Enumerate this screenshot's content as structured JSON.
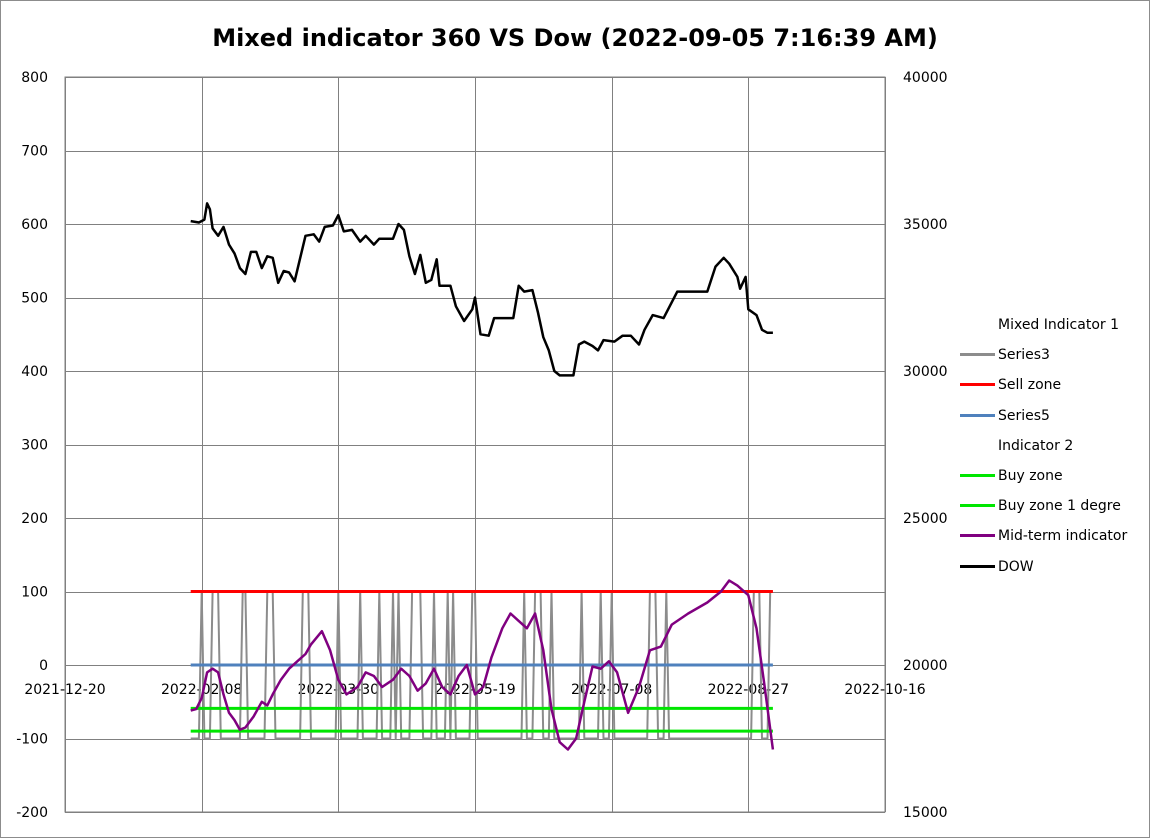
{
  "chart_data": {
    "type": "line",
    "title": "Mixed indicator 360 VS Dow (2022-09-05 7:16:39 AM)",
    "xlabel": "",
    "ylabel": "",
    "x_tick_labels": [
      "2021-12-20",
      "2022-02-08",
      "2022-03-30",
      "2022-05-19",
      "2022-07-08",
      "2022-08-27",
      "2022-10-16"
    ],
    "x_range": [
      "2021-12-20",
      "2022-10-16"
    ],
    "y_left": {
      "ticks": [
        800,
        700,
        600,
        500,
        400,
        300,
        200,
        100,
        0,
        -100,
        -200
      ],
      "range": [
        -200,
        800
      ]
    },
    "y_right": {
      "ticks": [
        40000,
        35000,
        30000,
        25000,
        20000,
        15000
      ],
      "range": [
        15000,
        40000
      ]
    },
    "grid": true,
    "legend_position": "right",
    "legend": [
      {
        "label": "Mixed Indicator 1",
        "color": ""
      },
      {
        "label": "Series3",
        "color": "#8c8c8c"
      },
      {
        "label": "Sell zone",
        "color": "#ff0000"
      },
      {
        "label": "Series5",
        "color": "#4f81bd"
      },
      {
        "label": "Indicator  2",
        "color": ""
      },
      {
        "label": "Buy zone",
        "color": "#00e600"
      },
      {
        "label": "Buy zone 1 degre",
        "color": "#00e600"
      },
      {
        "label": "Mid-term indicator",
        "color": "#800080"
      },
      {
        "label": "DOW",
        "color": "#000000"
      }
    ],
    "series": [
      {
        "name": "Series3",
        "axis": "left",
        "color": "#8c8c8c",
        "points": [
          [
            "2022-02-04",
            -100
          ],
          [
            "2022-02-07",
            -100
          ],
          [
            "2022-02-08",
            100
          ],
          [
            "2022-02-09",
            -100
          ],
          [
            "2022-02-11",
            -100
          ],
          [
            "2022-02-12",
            100
          ],
          [
            "2022-02-14",
            100
          ],
          [
            "2022-02-15",
            -100
          ],
          [
            "2022-02-22",
            -100
          ],
          [
            "2022-02-23",
            100
          ],
          [
            "2022-02-24",
            100
          ],
          [
            "2022-02-25",
            -100
          ],
          [
            "2022-03-03",
            -100
          ],
          [
            "2022-03-04",
            100
          ],
          [
            "2022-03-06",
            100
          ],
          [
            "2022-03-07",
            -100
          ],
          [
            "2022-03-16",
            -100
          ],
          [
            "2022-03-17",
            100
          ],
          [
            "2022-03-19",
            100
          ],
          [
            "2022-03-20",
            -100
          ],
          [
            "2022-03-29",
            -100
          ],
          [
            "2022-03-30",
            100
          ],
          [
            "2022-03-31",
            -100
          ],
          [
            "2022-04-06",
            -100
          ],
          [
            "2022-04-07",
            100
          ],
          [
            "2022-04-08",
            -100
          ],
          [
            "2022-04-13",
            -100
          ],
          [
            "2022-04-14",
            100
          ],
          [
            "2022-04-15",
            -100
          ],
          [
            "2022-04-18",
            -100
          ],
          [
            "2022-04-19",
            100
          ],
          [
            "2022-04-20",
            -100
          ],
          [
            "2022-04-21",
            100
          ],
          [
            "2022-04-22",
            -100
          ],
          [
            "2022-04-25",
            -100
          ],
          [
            "2022-04-26",
            100
          ],
          [
            "2022-04-29",
            100
          ],
          [
            "2022-04-30",
            -100
          ],
          [
            "2022-05-03",
            -100
          ],
          [
            "2022-05-04",
            100
          ],
          [
            "2022-05-05",
            -100
          ],
          [
            "2022-05-08",
            -100
          ],
          [
            "2022-05-09",
            100
          ],
          [
            "2022-05-10",
            -100
          ],
          [
            "2022-05-11",
            100
          ],
          [
            "2022-05-12",
            -100
          ],
          [
            "2022-05-17",
            -100
          ],
          [
            "2022-05-18",
            100
          ],
          [
            "2022-05-19",
            100
          ],
          [
            "2022-05-20",
            -100
          ],
          [
            "2022-06-05",
            -100
          ],
          [
            "2022-06-06",
            100
          ],
          [
            "2022-06-07",
            -100
          ],
          [
            "2022-06-09",
            -100
          ],
          [
            "2022-06-10",
            100
          ],
          [
            "2022-06-12",
            100
          ],
          [
            "2022-06-13",
            -100
          ],
          [
            "2022-06-15",
            -100
          ],
          [
            "2022-06-16",
            100
          ],
          [
            "2022-06-17",
            -100
          ],
          [
            "2022-06-26",
            -100
          ],
          [
            "2022-06-27",
            100
          ],
          [
            "2022-06-28",
            -100
          ],
          [
            "2022-07-03",
            -100
          ],
          [
            "2022-07-04",
            100
          ],
          [
            "2022-07-05",
            -100
          ],
          [
            "2022-07-07",
            -100
          ],
          [
            "2022-07-08",
            100
          ],
          [
            "2022-07-09",
            -100
          ],
          [
            "2022-07-21",
            -100
          ],
          [
            "2022-07-22",
            100
          ],
          [
            "2022-07-24",
            100
          ],
          [
            "2022-07-25",
            -100
          ],
          [
            "2022-07-27",
            -100
          ],
          [
            "2022-07-28",
            100
          ],
          [
            "2022-07-29",
            -100
          ],
          [
            "2022-08-28",
            -100
          ],
          [
            "2022-08-29",
            100
          ],
          [
            "2022-08-31",
            100
          ],
          [
            "2022-09-01",
            -100
          ],
          [
            "2022-09-03",
            -100
          ],
          [
            "2022-09-04",
            100
          ],
          [
            "2022-09-05",
            100
          ]
        ]
      },
      {
        "name": "Sell zone",
        "axis": "left",
        "color": "#ff0000",
        "points": [
          [
            "2022-02-04",
            100
          ],
          [
            "2022-09-05",
            100
          ]
        ]
      },
      {
        "name": "Series5",
        "axis": "left",
        "color": "#4f81bd",
        "points": [
          [
            "2022-02-04",
            0
          ],
          [
            "2022-09-05",
            0
          ]
        ]
      },
      {
        "name": "Buy zone",
        "axis": "left",
        "color": "#00e600",
        "points": [
          [
            "2022-02-04",
            -59
          ],
          [
            "2022-09-05",
            -59
          ]
        ]
      },
      {
        "name": "Buy zone 1 degre",
        "axis": "left",
        "color": "#00e600",
        "points": [
          [
            "2022-02-04",
            -90
          ],
          [
            "2022-09-05",
            -90
          ]
        ]
      },
      {
        "name": "Mid-term indicator",
        "axis": "left",
        "color": "#800080",
        "points": [
          [
            "2022-02-04",
            -62
          ],
          [
            "2022-02-06",
            -60
          ],
          [
            "2022-02-08",
            -45
          ],
          [
            "2022-02-10",
            -10
          ],
          [
            "2022-02-12",
            -5
          ],
          [
            "2022-02-14",
            -10
          ],
          [
            "2022-02-16",
            -40
          ],
          [
            "2022-02-18",
            -65
          ],
          [
            "2022-02-20",
            -75
          ],
          [
            "2022-02-22",
            -88
          ],
          [
            "2022-02-24",
            -85
          ],
          [
            "2022-02-27",
            -70
          ],
          [
            "2022-03-02",
            -50
          ],
          [
            "2022-03-04",
            -55
          ],
          [
            "2022-03-06",
            -40
          ],
          [
            "2022-03-09",
            -20
          ],
          [
            "2022-03-12",
            -5
          ],
          [
            "2022-03-15",
            5
          ],
          [
            "2022-03-18",
            15
          ],
          [
            "2022-03-20",
            28
          ],
          [
            "2022-03-24",
            46
          ],
          [
            "2022-03-27",
            20
          ],
          [
            "2022-03-30",
            -20
          ],
          [
            "2022-04-02",
            -40
          ],
          [
            "2022-04-06",
            -30
          ],
          [
            "2022-04-09",
            -10
          ],
          [
            "2022-04-12",
            -15
          ],
          [
            "2022-04-15",
            -30
          ],
          [
            "2022-04-19",
            -20
          ],
          [
            "2022-04-22",
            -5
          ],
          [
            "2022-04-25",
            -15
          ],
          [
            "2022-04-28",
            -35
          ],
          [
            "2022-05-01",
            -25
          ],
          [
            "2022-05-04",
            -5
          ],
          [
            "2022-05-07",
            -30
          ],
          [
            "2022-05-10",
            -40
          ],
          [
            "2022-05-13",
            -15
          ],
          [
            "2022-05-16",
            0
          ],
          [
            "2022-05-19",
            -40
          ],
          [
            "2022-05-22",
            -30
          ],
          [
            "2022-05-25",
            10
          ],
          [
            "2022-05-29",
            50
          ],
          [
            "2022-06-01",
            70
          ],
          [
            "2022-06-04",
            60
          ],
          [
            "2022-06-07",
            50
          ],
          [
            "2022-06-10",
            70
          ],
          [
            "2022-06-13",
            20
          ],
          [
            "2022-06-16",
            -60
          ],
          [
            "2022-06-19",
            -105
          ],
          [
            "2022-06-22",
            -115
          ],
          [
            "2022-06-25",
            -100
          ],
          [
            "2022-06-28",
            -50
          ],
          [
            "2022-07-01",
            -2
          ],
          [
            "2022-07-04",
            -5
          ],
          [
            "2022-07-07",
            5
          ],
          [
            "2022-07-10",
            -10
          ],
          [
            "2022-07-14",
            -65
          ],
          [
            "2022-07-18",
            -30
          ],
          [
            "2022-07-22",
            20
          ],
          [
            "2022-07-26",
            25
          ],
          [
            "2022-07-30",
            55
          ],
          [
            "2022-08-05",
            70
          ],
          [
            "2022-08-12",
            85
          ],
          [
            "2022-08-17",
            100
          ],
          [
            "2022-08-20",
            115
          ],
          [
            "2022-08-23",
            108
          ],
          [
            "2022-08-27",
            95
          ],
          [
            "2022-08-30",
            50
          ],
          [
            "2022-09-02",
            -30
          ],
          [
            "2022-09-05",
            -115
          ]
        ]
      },
      {
        "name": "DOW",
        "axis": "right",
        "color": "#000000",
        "points": [
          [
            "2022-02-04",
            35100
          ],
          [
            "2022-02-07",
            35050
          ],
          [
            "2022-02-09",
            35150
          ],
          [
            "2022-02-10",
            35700
          ],
          [
            "2022-02-11",
            35500
          ],
          [
            "2022-02-12",
            34850
          ],
          [
            "2022-02-14",
            34600
          ],
          [
            "2022-02-16",
            34900
          ],
          [
            "2022-02-18",
            34300
          ],
          [
            "2022-02-20",
            34000
          ],
          [
            "2022-02-22",
            33500
          ],
          [
            "2022-02-24",
            33300
          ],
          [
            "2022-02-26",
            34050
          ],
          [
            "2022-02-28",
            34050
          ],
          [
            "2022-03-02",
            33500
          ],
          [
            "2022-03-04",
            33900
          ],
          [
            "2022-03-06",
            33850
          ],
          [
            "2022-03-08",
            33000
          ],
          [
            "2022-03-10",
            33400
          ],
          [
            "2022-03-12",
            33350
          ],
          [
            "2022-03-14",
            33050
          ],
          [
            "2022-03-18",
            34600
          ],
          [
            "2022-03-21",
            34650
          ],
          [
            "2022-03-23",
            34400
          ],
          [
            "2022-03-25",
            34900
          ],
          [
            "2022-03-28",
            34950
          ],
          [
            "2022-03-30",
            35300
          ],
          [
            "2022-04-01",
            34750
          ],
          [
            "2022-04-04",
            34800
          ],
          [
            "2022-04-07",
            34400
          ],
          [
            "2022-04-09",
            34600
          ],
          [
            "2022-04-12",
            34300
          ],
          [
            "2022-04-14",
            34500
          ],
          [
            "2022-04-19",
            34500
          ],
          [
            "2022-04-21",
            35000
          ],
          [
            "2022-04-23",
            34800
          ],
          [
            "2022-04-25",
            33900
          ],
          [
            "2022-04-27",
            33300
          ],
          [
            "2022-04-29",
            33950
          ],
          [
            "2022-05-01",
            33000
          ],
          [
            "2022-05-03",
            33100
          ],
          [
            "2022-05-05",
            33800
          ],
          [
            "2022-05-06",
            32900
          ],
          [
            "2022-05-10",
            32900
          ],
          [
            "2022-05-12",
            32200
          ],
          [
            "2022-05-15",
            31700
          ],
          [
            "2022-05-18",
            32100
          ],
          [
            "2022-05-19",
            32500
          ],
          [
            "2022-05-21",
            31250
          ],
          [
            "2022-05-24",
            31200
          ],
          [
            "2022-05-26",
            31800
          ],
          [
            "2022-06-02",
            31800
          ],
          [
            "2022-06-04",
            32900
          ],
          [
            "2022-06-06",
            32700
          ],
          [
            "2022-06-09",
            32750
          ],
          [
            "2022-06-11",
            32000
          ],
          [
            "2022-06-13",
            31150
          ],
          [
            "2022-06-15",
            30700
          ],
          [
            "2022-06-17",
            30000
          ],
          [
            "2022-06-19",
            29850
          ],
          [
            "2022-06-24",
            29850
          ],
          [
            "2022-06-26",
            30900
          ],
          [
            "2022-06-28",
            31000
          ],
          [
            "2022-07-01",
            30850
          ],
          [
            "2022-07-03",
            30700
          ],
          [
            "2022-07-05",
            31050
          ],
          [
            "2022-07-09",
            31000
          ],
          [
            "2022-07-12",
            31200
          ],
          [
            "2022-07-15",
            31200
          ],
          [
            "2022-07-18",
            30900
          ],
          [
            "2022-07-20",
            31400
          ],
          [
            "2022-07-23",
            31900
          ],
          [
            "2022-07-27",
            31800
          ],
          [
            "2022-08-01",
            32700
          ],
          [
            "2022-08-03",
            32700
          ],
          [
            "2022-08-12",
            32700
          ],
          [
            "2022-08-15",
            33550
          ],
          [
            "2022-08-18",
            33850
          ],
          [
            "2022-08-20",
            33650
          ],
          [
            "2022-08-23",
            33200
          ],
          [
            "2022-08-24",
            32800
          ],
          [
            "2022-08-26",
            33200
          ],
          [
            "2022-08-27",
            32100
          ],
          [
            "2022-08-30",
            31900
          ],
          [
            "2022-09-01",
            31400
          ],
          [
            "2022-09-03",
            31300
          ],
          [
            "2022-09-05",
            31300
          ]
        ]
      }
    ]
  }
}
